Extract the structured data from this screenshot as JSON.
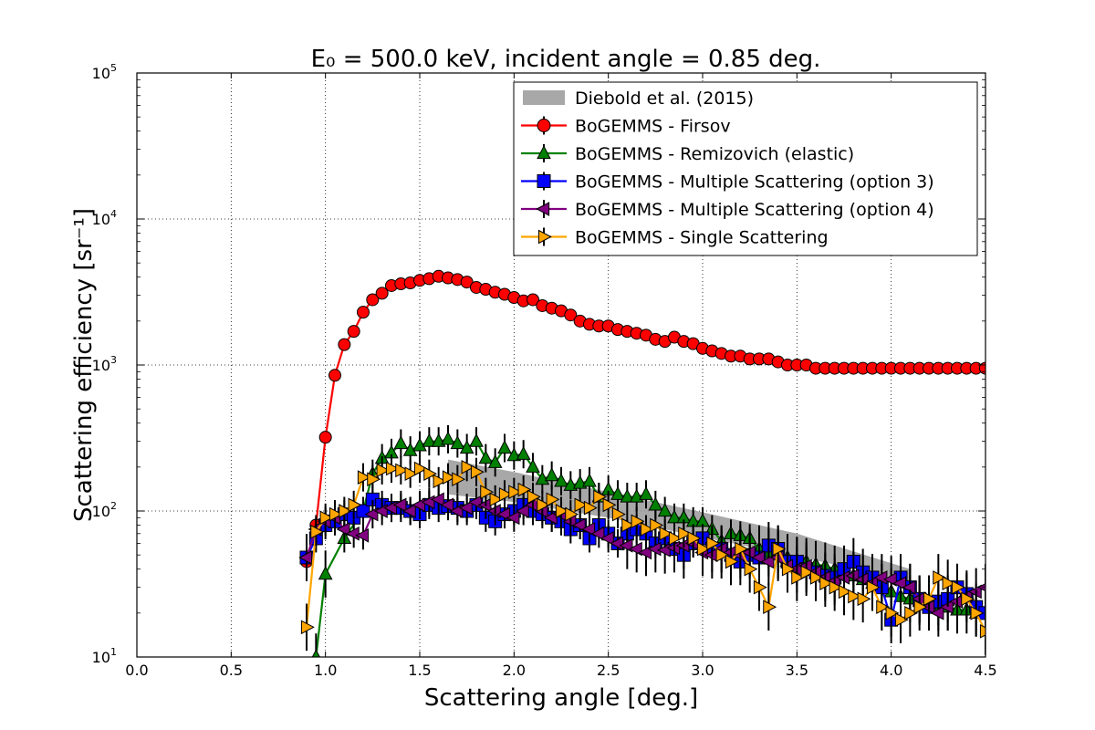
{
  "chart_data": {
    "type": "line",
    "title": "E₀ = 500.0 keV, incident angle = 0.85 deg.",
    "xlabel": "Scattering angle [deg.]",
    "ylabel": "Scattering efficiency [sr⁻¹]",
    "xlim": [
      0.0,
      4.5
    ],
    "ylim": [
      10,
      100000
    ],
    "y_scale": "log",
    "grid": true,
    "legend_position": "top-right",
    "x_ticks": [
      "0.0",
      "0.5",
      "1.0",
      "1.5",
      "2.0",
      "2.5",
      "3.0",
      "3.5",
      "4.0",
      "4.5"
    ],
    "y_ticks": [
      {
        "value": 10,
        "mantissa": "10",
        "exp": "1"
      },
      {
        "value": 100,
        "mantissa": "10",
        "exp": "2"
      },
      {
        "value": 1000,
        "mantissa": "10",
        "exp": "3"
      },
      {
        "value": 10000,
        "mantissa": "10",
        "exp": "4"
      },
      {
        "value": 100000,
        "mantissa": "10",
        "exp": "5"
      }
    ],
    "band": {
      "name": "Diebold et al. (2015)",
      "color": "#999999",
      "x": [
        1.65,
        2.0,
        2.5,
        3.0,
        3.5,
        4.1
      ],
      "lower": [
        130,
        115,
        90,
        66,
        49,
        33
      ],
      "upper": [
        225,
        185,
        135,
        98,
        70,
        40
      ]
    },
    "series": [
      {
        "name": "BoGEMMS - Firsov",
        "color": "#ff0000",
        "marker": "circle",
        "x": [
          0.9,
          0.95,
          1.0,
          1.05,
          1.1,
          1.15,
          1.2,
          1.25,
          1.3,
          1.35,
          1.4,
          1.45,
          1.5,
          1.55,
          1.6,
          1.65,
          1.7,
          1.75,
          1.8,
          1.85,
          1.9,
          1.95,
          2.0,
          2.05,
          2.1,
          2.15,
          2.2,
          2.25,
          2.3,
          2.35,
          2.4,
          2.45,
          2.5,
          2.55,
          2.6,
          2.65,
          2.7,
          2.75,
          2.8,
          2.85,
          2.9,
          2.95,
          3.0,
          3.05,
          3.1,
          3.15,
          3.2,
          3.25,
          3.3,
          3.35,
          3.4,
          3.45,
          3.5,
          3.55,
          3.6,
          3.65,
          3.7,
          3.75,
          3.8,
          3.85,
          3.9,
          3.95,
          4.0,
          4.05,
          4.1,
          4.15,
          4.2,
          4.25,
          4.3,
          4.35,
          4.4,
          4.45,
          4.5
        ],
        "y": [
          45,
          80,
          320,
          850,
          1380,
          1700,
          2300,
          2800,
          3100,
          3500,
          3600,
          3650,
          3800,
          3900,
          4050,
          3950,
          3850,
          3700,
          3400,
          3300,
          3150,
          3050,
          2900,
          2750,
          2800,
          2550,
          2450,
          2350,
          2200,
          2000,
          1900,
          1850,
          1850,
          1750,
          1700,
          1650,
          1600,
          1500,
          1450,
          1550,
          1450,
          1400,
          1300,
          1250,
          1200,
          1150,
          1150,
          1100,
          1100,
          1100,
          1050,
          1000,
          1000,
          1000,
          950,
          950,
          950,
          950,
          950,
          950,
          950,
          950,
          950,
          950,
          950,
          950,
          950,
          950,
          950,
          950,
          950,
          950,
          950
        ]
      },
      {
        "name": "BoGEMMS - Remizovich (elastic)",
        "color": "#008000",
        "marker": "triangle-up",
        "x": [
          0.95,
          1.0,
          1.1,
          1.2,
          1.25,
          1.3,
          1.35,
          1.4,
          1.45,
          1.5,
          1.55,
          1.6,
          1.65,
          1.7,
          1.75,
          1.8,
          1.85,
          1.9,
          1.95,
          2.0,
          2.05,
          2.1,
          2.15,
          2.2,
          2.25,
          2.3,
          2.35,
          2.4,
          2.45,
          2.5,
          2.55,
          2.6,
          2.65,
          2.7,
          2.75,
          2.8,
          2.85,
          2.9,
          2.95,
          3.0,
          3.05,
          3.1,
          3.15,
          3.2,
          3.25,
          3.3,
          3.35,
          3.4,
          3.45,
          3.5,
          3.55,
          3.6,
          3.65,
          3.7,
          3.75,
          3.8,
          3.85,
          3.9,
          3.95,
          4.0,
          4.05,
          4.1,
          4.15,
          4.2,
          4.25,
          4.3,
          4.35,
          4.4,
          4.45,
          4.5
        ],
        "y": [
          10,
          37,
          65,
          100,
          180,
          230,
          250,
          290,
          260,
          280,
          300,
          300,
          310,
          290,
          270,
          300,
          230,
          215,
          270,
          240,
          245,
          200,
          165,
          175,
          160,
          150,
          155,
          160,
          125,
          140,
          130,
          125,
          125,
          130,
          110,
          100,
          90,
          90,
          85,
          85,
          75,
          62,
          70,
          68,
          65,
          55,
          52,
          50,
          48,
          46,
          45,
          43,
          42,
          40,
          38,
          36,
          34,
          32,
          30,
          28,
          26,
          25,
          24,
          23,
          22,
          22,
          21,
          21,
          20,
          20
        ]
      },
      {
        "name": "BoGEMMS - Multiple Scattering (option 3)",
        "color": "#0000ff",
        "marker": "square",
        "x": [
          0.9,
          0.95,
          1.0,
          1.05,
          1.1,
          1.15,
          1.2,
          1.25,
          1.3,
          1.35,
          1.4,
          1.45,
          1.5,
          1.55,
          1.6,
          1.65,
          1.7,
          1.75,
          1.8,
          1.85,
          1.9,
          1.95,
          2.0,
          2.05,
          2.1,
          2.15,
          2.2,
          2.25,
          2.3,
          2.35,
          2.4,
          2.45,
          2.5,
          2.55,
          2.6,
          2.65,
          2.7,
          2.75,
          2.8,
          2.85,
          2.9,
          2.95,
          3.0,
          3.05,
          3.1,
          3.15,
          3.2,
          3.25,
          3.3,
          3.35,
          3.4,
          3.45,
          3.5,
          3.55,
          3.6,
          3.65,
          3.7,
          3.75,
          3.8,
          3.85,
          3.9,
          3.95,
          4.0,
          4.05,
          4.1,
          4.15,
          4.2,
          4.25,
          4.3,
          4.35,
          4.4,
          4.45,
          4.5
        ],
        "y": [
          48,
          65,
          80,
          85,
          95,
          90,
          100,
          120,
          110,
          105,
          105,
          100,
          95,
          110,
          105,
          108,
          105,
          100,
          110,
          90,
          85,
          95,
          100,
          110,
          100,
          95,
          90,
          85,
          75,
          80,
          65,
          80,
          70,
          60,
          70,
          75,
          70,
          60,
          65,
          55,
          50,
          60,
          65,
          55,
          55,
          50,
          45,
          50,
          48,
          58,
          55,
          45,
          45,
          40,
          38,
          36,
          35,
          40,
          45,
          38,
          35,
          30,
          18,
          35,
          30,
          25,
          22,
          24,
          25,
          30,
          27,
          22,
          20
        ]
      },
      {
        "name": "BoGEMMS - Multiple Scattering (option 4)",
        "color": "#800080",
        "marker": "triangle-left",
        "x": [
          0.9,
          0.95,
          1.0,
          1.05,
          1.1,
          1.15,
          1.2,
          1.25,
          1.3,
          1.35,
          1.4,
          1.45,
          1.5,
          1.55,
          1.6,
          1.65,
          1.7,
          1.75,
          1.8,
          1.85,
          1.9,
          1.95,
          2.0,
          2.05,
          2.1,
          2.15,
          2.2,
          2.25,
          2.3,
          2.35,
          2.4,
          2.45,
          2.5,
          2.55,
          2.6,
          2.65,
          2.7,
          2.75,
          2.8,
          2.85,
          2.9,
          2.95,
          3.0,
          3.05,
          3.1,
          3.15,
          3.2,
          3.25,
          3.3,
          3.35,
          3.4,
          3.45,
          3.5,
          3.55,
          3.6,
          3.65,
          3.7,
          3.75,
          3.8,
          3.85,
          3.9,
          3.95,
          4.0,
          4.05,
          4.1,
          4.15,
          4.2,
          4.25,
          4.3,
          4.35,
          4.4,
          4.45,
          4.5
        ],
        "y": [
          48,
          75,
          85,
          90,
          75,
          70,
          68,
          95,
          100,
          105,
          110,
          100,
          110,
          115,
          120,
          110,
          100,
          105,
          115,
          110,
          100,
          95,
          90,
          100,
          110,
          100,
          90,
          95,
          85,
          80,
          75,
          70,
          65,
          60,
          58,
          55,
          52,
          55,
          54,
          56,
          58,
          60,
          52,
          50,
          55,
          52,
          50,
          52,
          48,
          45,
          48,
          42,
          40,
          42,
          38,
          35,
          33,
          35,
          36,
          34,
          32,
          35,
          34,
          32,
          30,
          25,
          22,
          20,
          22,
          24,
          26,
          28,
          30
        ]
      },
      {
        "name": "BoGEMMS - Single Scattering",
        "color": "#ffa500",
        "marker": "triangle-right",
        "x": [
          0.9,
          0.95,
          1.0,
          1.05,
          1.1,
          1.15,
          1.2,
          1.25,
          1.3,
          1.35,
          1.4,
          1.45,
          1.5,
          1.55,
          1.6,
          1.65,
          1.7,
          1.75,
          1.8,
          1.85,
          1.9,
          1.95,
          2.0,
          2.05,
          2.1,
          2.15,
          2.2,
          2.25,
          2.3,
          2.35,
          2.4,
          2.45,
          2.5,
          2.55,
          2.6,
          2.65,
          2.7,
          2.75,
          2.8,
          2.85,
          2.9,
          2.95,
          3.0,
          3.05,
          3.1,
          3.15,
          3.2,
          3.25,
          3.3,
          3.35,
          3.4,
          3.45,
          3.5,
          3.55,
          3.6,
          3.65,
          3.7,
          3.75,
          3.8,
          3.85,
          3.9,
          3.95,
          4.0,
          4.05,
          4.1,
          4.15,
          4.2,
          4.25,
          4.3,
          4.35,
          4.4,
          4.45,
          4.5
        ],
        "y": [
          16,
          72,
          90,
          95,
          100,
          110,
          170,
          165,
          190,
          195,
          190,
          180,
          195,
          180,
          160,
          170,
          165,
          200,
          185,
          135,
          120,
          130,
          135,
          140,
          125,
          110,
          120,
          100,
          95,
          110,
          105,
          125,
          110,
          95,
          80,
          85,
          75,
          80,
          70,
          65,
          70,
          65,
          55,
          60,
          50,
          45,
          55,
          40,
          30,
          22,
          55,
          40,
          35,
          38,
          35,
          32,
          30,
          28,
          26,
          25,
          30,
          22,
          20,
          18,
          20,
          22,
          25,
          35,
          32,
          30,
          25,
          20,
          15
        ]
      }
    ]
  }
}
